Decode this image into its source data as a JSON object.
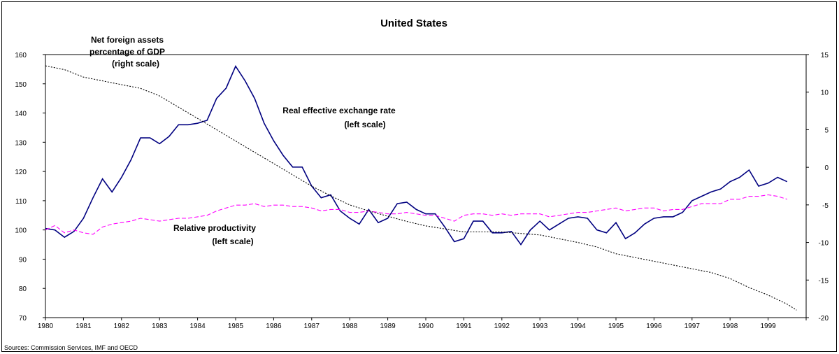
{
  "chart_data": {
    "type": "line",
    "title": "United States",
    "source": "Sources: Commission Services, IMF and OECD",
    "x_labels": [
      "1980",
      "1981",
      "1982",
      "1983",
      "1984",
      "1985",
      "1986",
      "1987",
      "1988",
      "1989",
      "1990",
      "1991",
      "1992",
      "1993",
      "1994",
      "1995",
      "1996",
      "1997",
      "1998",
      "1999"
    ],
    "xlim": [
      1980,
      2000
    ],
    "left_axis": {
      "ylim": [
        70,
        160
      ],
      "ticks": [
        70,
        80,
        90,
        100,
        110,
        120,
        130,
        140,
        150,
        160
      ]
    },
    "right_axis": {
      "ylim": [
        -20,
        15
      ],
      "ticks": [
        -20,
        -15,
        -10,
        -5,
        0,
        5,
        10,
        15
      ]
    },
    "annotations": {
      "nfa_line1": "Net foreign assets",
      "nfa_line2": "percentage of GDP",
      "nfa_line3": "(right scale)",
      "reer_line1": "Real effective exchange rate",
      "reer_line2": "(left scale)",
      "prod_line1": "Relative productivity",
      "prod_line2": "(left scale)"
    },
    "series": [
      {
        "name": "Real effective exchange rate",
        "axis": "left",
        "color": "#000080",
        "style": "solid",
        "x": [
          1980.0,
          1980.25,
          1980.5,
          1980.75,
          1981.0,
          1981.25,
          1981.5,
          1981.75,
          1982.0,
          1982.25,
          1982.5,
          1982.75,
          1983.0,
          1983.25,
          1983.5,
          1983.75,
          1984.0,
          1984.25,
          1984.5,
          1984.75,
          1985.0,
          1985.25,
          1985.5,
          1985.75,
          1986.0,
          1986.25,
          1986.5,
          1986.75,
          1987.0,
          1987.25,
          1987.5,
          1987.75,
          1988.0,
          1988.25,
          1988.5,
          1988.75,
          1989.0,
          1989.25,
          1989.5,
          1989.75,
          1990.0,
          1990.25,
          1990.5,
          1990.75,
          1991.0,
          1991.25,
          1991.5,
          1991.75,
          1992.0,
          1992.25,
          1992.5,
          1992.75,
          1993.0,
          1993.25,
          1993.5,
          1993.75,
          1994.0,
          1994.25,
          1994.5,
          1994.75,
          1995.0,
          1995.25,
          1995.5,
          1995.75,
          1996.0,
          1996.25,
          1996.5,
          1996.75,
          1997.0,
          1997.25,
          1997.5,
          1997.75,
          1998.0,
          1998.25,
          1998.5,
          1998.75,
          1999.0,
          1999.25,
          1999.5
        ],
        "values": [
          100.5,
          100,
          97.5,
          99.5,
          104,
          111,
          117.5,
          113,
          118,
          124,
          131.5,
          131.5,
          129.5,
          132,
          136,
          136,
          136.5,
          137.5,
          145,
          148.5,
          156,
          151,
          145,
          136.5,
          130.5,
          125.5,
          121.5,
          121.5,
          115,
          111,
          112,
          106.5,
          104,
          102,
          107,
          102.5,
          104,
          109,
          109.5,
          107,
          105.5,
          105.5,
          101,
          96,
          97,
          103,
          103,
          99,
          99,
          99.5,
          95,
          100,
          103,
          100,
          102,
          104,
          104.5,
          104,
          100,
          99,
          102.5,
          97,
          99,
          102,
          104,
          104.5,
          104.5,
          106,
          110,
          111.5,
          113,
          114,
          116.5,
          118,
          120.5,
          115,
          116,
          118,
          116.5
        ]
      },
      {
        "name": "Relative productivity",
        "axis": "left",
        "color": "#ff00ff",
        "style": "dashed",
        "x": [
          1980.0,
          1980.25,
          1980.5,
          1980.75,
          1981.0,
          1981.25,
          1981.5,
          1981.75,
          1982.0,
          1982.25,
          1982.5,
          1982.75,
          1983.0,
          1983.25,
          1983.5,
          1983.75,
          1984.0,
          1984.25,
          1984.5,
          1984.75,
          1985.0,
          1985.25,
          1985.5,
          1985.75,
          1986.0,
          1986.25,
          1986.5,
          1986.75,
          1987.0,
          1987.25,
          1987.5,
          1987.75,
          1988.0,
          1988.25,
          1988.5,
          1988.75,
          1989.0,
          1989.25,
          1989.5,
          1989.75,
          1990.0,
          1990.25,
          1990.5,
          1990.75,
          1991.0,
          1991.25,
          1991.5,
          1991.75,
          1992.0,
          1992.25,
          1992.5,
          1992.75,
          1993.0,
          1993.25,
          1993.5,
          1993.75,
          1994.0,
          1994.25,
          1994.5,
          1994.75,
          1995.0,
          1995.25,
          1995.5,
          1995.75,
          1996.0,
          1996.25,
          1996.5,
          1996.75,
          1997.0,
          1997.25,
          1997.5,
          1997.75,
          1998.0,
          1998.25,
          1998.5,
          1998.75,
          1999.0,
          1999.25,
          1999.5
        ],
        "values": [
          100,
          101.5,
          99,
          100,
          99,
          98.5,
          101,
          102,
          102.5,
          103,
          104,
          103.5,
          103,
          103.5,
          104,
          104,
          104.5,
          105,
          106.5,
          107.5,
          108.5,
          108.5,
          109,
          108,
          108.5,
          108.5,
          108,
          108,
          107.5,
          106.5,
          107,
          107,
          106,
          106,
          106.5,
          106,
          105.5,
          105.5,
          106,
          105.5,
          105,
          105,
          104,
          103,
          105,
          105.5,
          105.5,
          105,
          105.5,
          105,
          105.5,
          105.5,
          105.5,
          104.5,
          105,
          105.5,
          106,
          106,
          106.5,
          107,
          107.5,
          106.5,
          107,
          107.5,
          107.5,
          106.5,
          107,
          107,
          108,
          109,
          109,
          109,
          110.5,
          110.5,
          111.5,
          111.5,
          112,
          111.5,
          110.5
        ]
      },
      {
        "name": "Net foreign assets percentage of GDP",
        "axis": "right",
        "color": "#000000",
        "style": "dotted",
        "x": [
          1980.0,
          1980.5,
          1981.0,
          1981.5,
          1982.0,
          1982.5,
          1983.0,
          1983.5,
          1984.0,
          1984.5,
          1985.0,
          1985.5,
          1986.0,
          1986.5,
          1987.0,
          1987.5,
          1988.0,
          1988.5,
          1989.0,
          1989.5,
          1990.0,
          1990.5,
          1991.0,
          1991.5,
          1992.0,
          1992.5,
          1993.0,
          1993.5,
          1994.0,
          1994.5,
          1995.0,
          1995.5,
          1996.0,
          1996.5,
          1997.0,
          1997.5,
          1998.0,
          1998.5,
          1999.0,
          1999.5,
          1999.75
        ],
        "values": [
          13.5,
          13,
          12,
          11.5,
          11,
          10.5,
          9.5,
          8,
          6.5,
          5,
          3.5,
          2,
          0.5,
          -1,
          -2.5,
          -3.8,
          -5,
          -5.8,
          -6.5,
          -7.2,
          -7.8,
          -8.2,
          -8.6,
          -8.6,
          -8.6,
          -8.8,
          -9,
          -9.5,
          -10,
          -10.6,
          -11.5,
          -12,
          -12.5,
          -13,
          -13.5,
          -14,
          -14.8,
          -16,
          -17,
          -18.2,
          -19
        ]
      }
    ]
  }
}
